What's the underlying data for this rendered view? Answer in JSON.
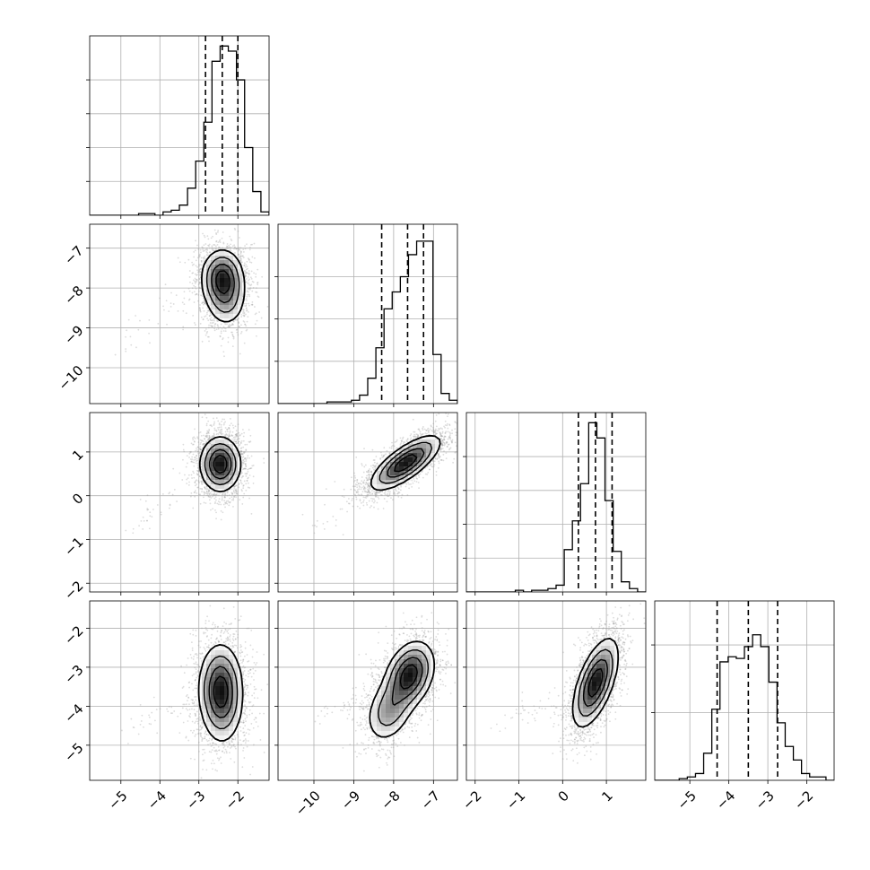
{
  "chart_data": {
    "type": "corner",
    "grid": true,
    "legend": "none",
    "colors": {
      "line": "#000000",
      "grid": "#b0b0b0",
      "scatter": "#9a9a9a"
    },
    "dimensions": [
      {
        "range": [
          -5.8,
          -1.2
        ],
        "ticks": [
          -5,
          -4,
          -3,
          -2
        ],
        "tick_labels": [
          "−5",
          "−4",
          "−3",
          "−2"
        ],
        "quantiles": [
          -2.83,
          -2.4,
          -2.0
        ],
        "hist": [
          0,
          0,
          0,
          0,
          0,
          0,
          0.01,
          0.01,
          0,
          0.02,
          0.03,
          0.06,
          0.16,
          0.32,
          0.55,
          0.91,
          1.0,
          0.97,
          0.8,
          0.4,
          0.14,
          0.02
        ],
        "hist_yticks": [
          0.2,
          0.4,
          0.6,
          0.8
        ]
      },
      {
        "range": [
          -10.9,
          -6.4
        ],
        "ticks": [
          -10,
          -9,
          -8,
          -7
        ],
        "tick_labels": [
          "−10",
          "−9",
          "−8",
          "−7"
        ],
        "quantiles": [
          -8.3,
          -7.65,
          -7.25
        ],
        "hist": [
          0,
          0,
          0,
          0,
          0,
          0,
          0.01,
          0.01,
          0.01,
          0.02,
          0.05,
          0.15,
          0.33,
          0.56,
          0.66,
          0.75,
          0.88,
          0.96,
          0.96,
          0.29,
          0.06,
          0.02
        ],
        "hist_yticks": [
          0.25,
          0.5,
          0.75
        ]
      },
      {
        "range": [
          -2.2,
          1.9
        ],
        "ticks": [
          -2,
          -1,
          0,
          1
        ],
        "tick_labels": [
          "−2",
          "−1",
          "0",
          "1"
        ],
        "quantiles": [
          0.36,
          0.75,
          1.13
        ],
        "hist": [
          0,
          0,
          0,
          0,
          0,
          0,
          0.01,
          0,
          0.01,
          0.01,
          0.02,
          0.04,
          0.25,
          0.42,
          0.64,
          1.0,
          0.91,
          0.54,
          0.24,
          0.06,
          0.02,
          0
        ],
        "hist_yticks": [
          0.2,
          0.4,
          0.6,
          0.8
        ]
      },
      {
        "range": [
          -5.9,
          -1.3
        ],
        "ticks": [
          -5,
          -4,
          -3,
          -2
        ],
        "tick_labels": [
          "−5",
          "−4",
          "−3",
          "−2"
        ],
        "quantiles": [
          -4.3,
          -3.5,
          -2.75
        ],
        "hist": [
          0,
          0,
          0,
          0.01,
          0.02,
          0.04,
          0.16,
          0.42,
          0.7,
          0.73,
          0.72,
          0.79,
          0.86,
          0.79,
          0.58,
          0.34,
          0.2,
          0.12,
          0.04,
          0.02,
          0.02,
          0
        ],
        "hist_yticks": [
          0.4,
          0.8
        ]
      }
    ],
    "pairs": [
      {
        "row": 1,
        "col": 0,
        "mean": [
          -2.4,
          -7.75
        ],
        "sd": [
          0.26,
          0.35
        ],
        "corr": 0.0,
        "mode2": [
          -2.3,
          -8.3
        ],
        "w2": 0.3
      },
      {
        "row": 2,
        "col": 0,
        "mean": [
          -2.45,
          0.72
        ],
        "sd": [
          0.25,
          0.3
        ],
        "corr": 0.0,
        "mode2": null,
        "w2": 0
      },
      {
        "row": 2,
        "col": 1,
        "mean": [
          -7.7,
          0.75
        ],
        "sd": [
          0.42,
          0.3
        ],
        "corr": 0.75,
        "mode2": null,
        "w2": 0
      },
      {
        "row": 3,
        "col": 0,
        "mean": [
          -2.45,
          -3.5
        ],
        "sd": [
          0.27,
          0.55
        ],
        "corr": 0.0,
        "mode2": [
          -2.4,
          -4.0
        ],
        "w2": 0.3
      },
      {
        "row": 3,
        "col": 1,
        "mean": [
          -7.6,
          -3.2
        ],
        "sd": [
          0.3,
          0.42
        ],
        "corr": 0.3,
        "mode2": [
          -8.1,
          -4.1
        ],
        "w2": 0.32
      },
      {
        "row": 3,
        "col": 2,
        "mean": [
          0.75,
          -3.4
        ],
        "sd": [
          0.25,
          0.55
        ],
        "corr": 0.6,
        "mode2": null,
        "w2": 0
      }
    ]
  }
}
